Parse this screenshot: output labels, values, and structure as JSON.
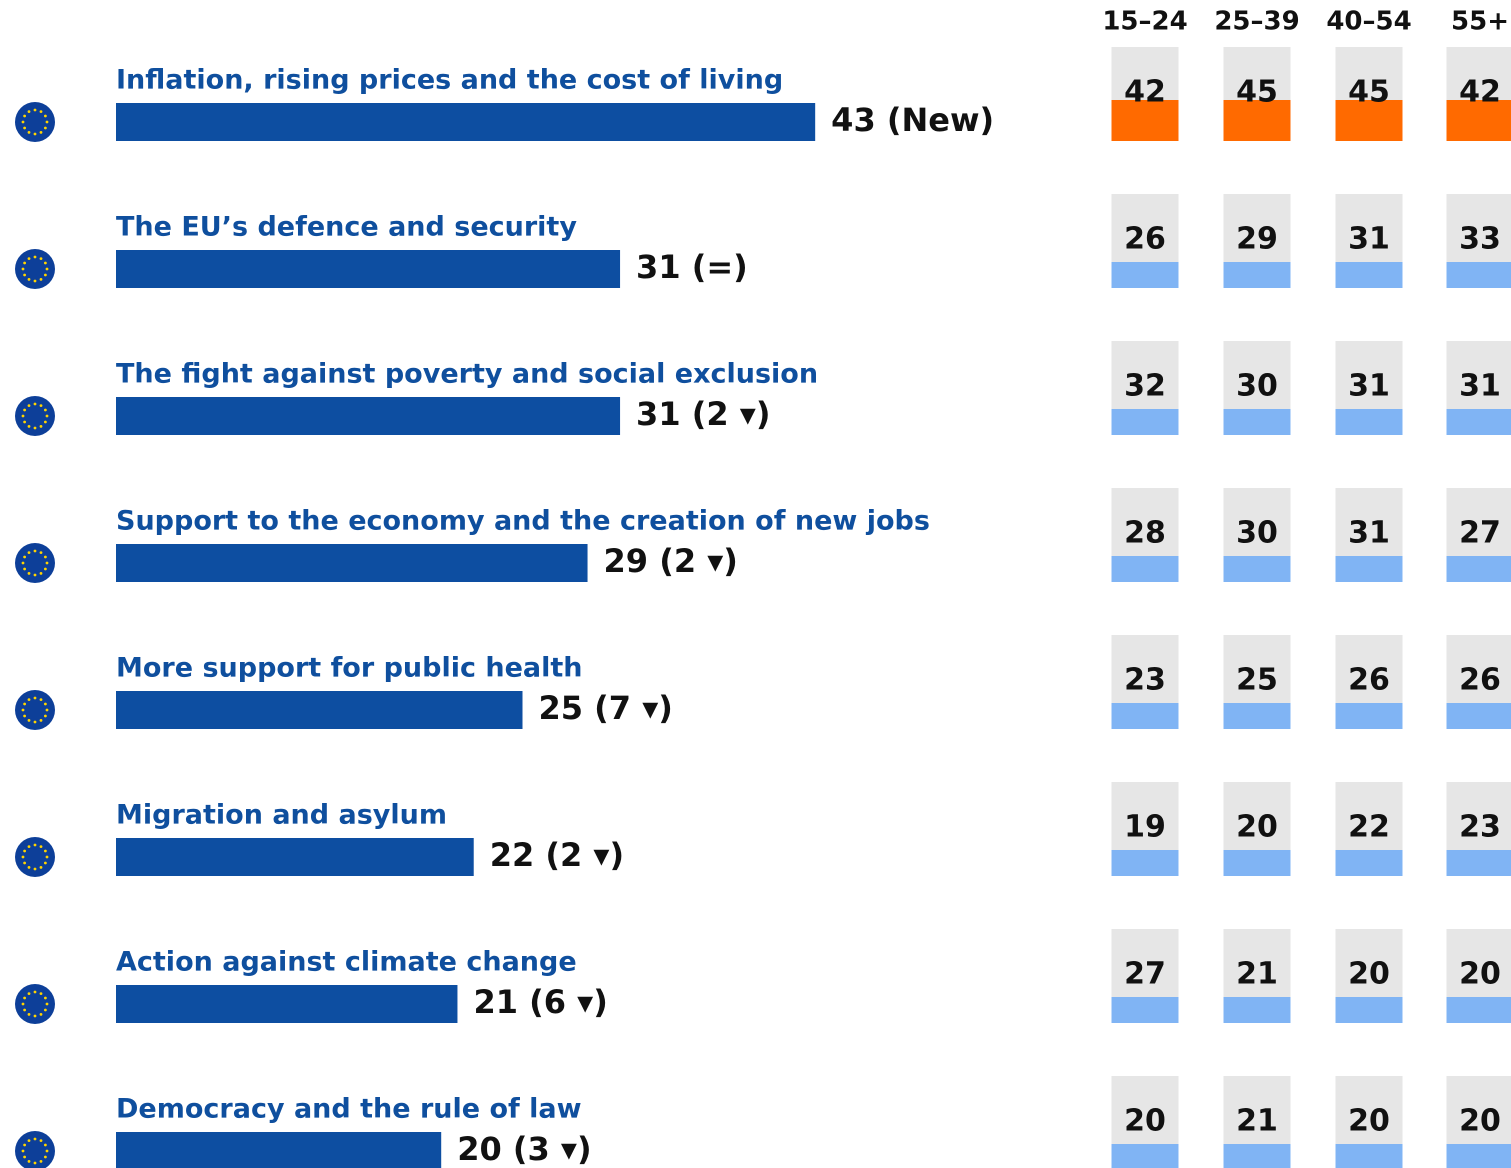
{
  "chart_data": {
    "type": "bar",
    "categories": [
      "Inflation, rising prices and the cost of living",
      "The EU’s defence and security",
      "The fight against poverty and social exclusion",
      "Support to the economy and the creation of new jobs",
      "More support for public health",
      "Migration and asylum",
      "Action against climate change",
      "Democracy and the rule of law"
    ],
    "values": [
      43,
      31,
      31,
      29,
      25,
      22,
      21,
      20
    ],
    "value_labels": [
      "43 (New)",
      "31 (=)",
      "31 (2 ▾)",
      "29 (2 ▾)",
      "25 (7 ▾)",
      "22 (2 ▾)",
      "21 (6 ▾)",
      "20 (3 ▾)"
    ],
    "color": "#0d4ea1",
    "age_groups": {
      "columns": [
        "15–24",
        "25–39",
        "40–54",
        "55+"
      ],
      "rows": [
        [
          42,
          45,
          45,
          42
        ],
        [
          26,
          29,
          31,
          33
        ],
        [
          32,
          30,
          31,
          31
        ],
        [
          28,
          30,
          31,
          27
        ],
        [
          23,
          25,
          26,
          26
        ],
        [
          19,
          20,
          22,
          23
        ],
        [
          27,
          21,
          20,
          20
        ],
        [
          20,
          21,
          20,
          20
        ]
      ],
      "row_colors": [
        "#ff6a00",
        "#80b4f4",
        "#80b4f4",
        "#80b4f4",
        "#80b4f4",
        "#80b4f4",
        "#80b4f4",
        "#80b4f4"
      ],
      "box_color": "#e6e6e6"
    }
  }
}
